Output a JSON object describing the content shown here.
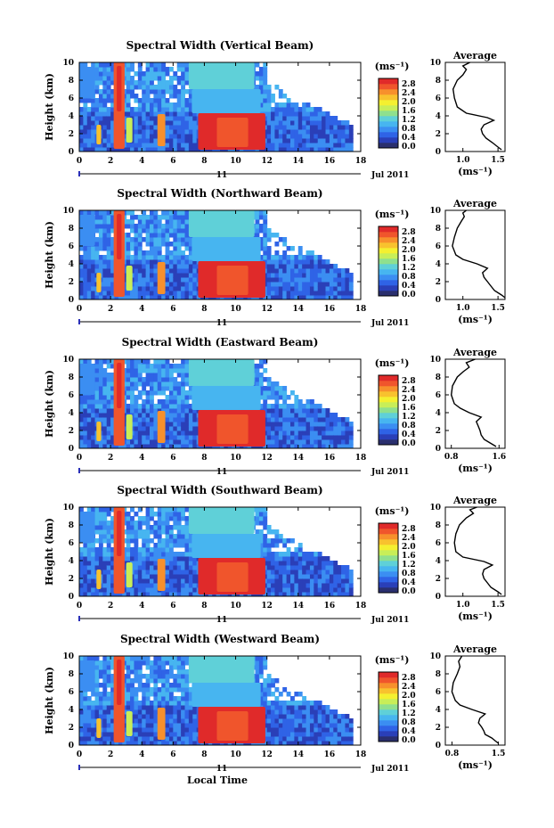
{
  "chart_data": [
    {
      "type": "heatmap",
      "title": "Spectral Width (Vertical Beam)",
      "ylabel": "Height (km)",
      "xlim": [
        0,
        18
      ],
      "ylim": [
        0,
        10
      ],
      "x_ticks": [
        "0",
        "2",
        "4",
        "6",
        "8",
        "10",
        "12",
        "14",
        "16",
        "18"
      ],
      "y_ticks": [
        "0",
        "2",
        "4",
        "6",
        "8",
        "10"
      ],
      "date_marker": "11",
      "date_label": "Jul 2011",
      "colorbar": {
        "unit": "(ms⁻¹)",
        "ticks": [
          "0.0",
          "0.4",
          "0.8",
          "1.2",
          "1.6",
          "2.0",
          "2.4",
          "2.8"
        ]
      },
      "average": {
        "title": "Average",
        "xlabel": "(ms⁻¹)",
        "x_ticks": [
          "1.0",
          "1.5"
        ],
        "xlim": [
          0.75,
          1.6
        ],
        "profile": [
          [
            1.55,
            0.2
          ],
          [
            1.5,
            0.5
          ],
          [
            1.42,
            1.0
          ],
          [
            1.33,
            1.5
          ],
          [
            1.28,
            2.0
          ],
          [
            1.26,
            2.5
          ],
          [
            1.3,
            3.0
          ],
          [
            1.44,
            3.5
          ],
          [
            1.35,
            3.8
          ],
          [
            1.05,
            4.3
          ],
          [
            0.92,
            5.0
          ],
          [
            0.88,
            6.0
          ],
          [
            0.86,
            7.0
          ],
          [
            0.92,
            8.0
          ],
          [
            1.0,
            8.6
          ],
          [
            1.05,
            9.2
          ],
          [
            1.0,
            9.6
          ],
          [
            1.1,
            10.0
          ]
        ]
      }
    },
    {
      "type": "heatmap",
      "title": "Spectral Width (Northward Beam)",
      "ylabel": "Height (km)",
      "xlim": [
        0,
        18
      ],
      "ylim": [
        0,
        10
      ],
      "x_ticks": [
        "0",
        "2",
        "4",
        "6",
        "8",
        "10",
        "12",
        "14",
        "16",
        "18"
      ],
      "y_ticks": [
        "0",
        "2",
        "4",
        "6",
        "8",
        "10"
      ],
      "date_marker": "11",
      "date_label": "Jul 2011",
      "colorbar": {
        "unit": "(ms⁻¹)",
        "ticks": [
          "0.0",
          "0.4",
          "0.8",
          "1.2",
          "1.6",
          "2.0",
          "2.4",
          "2.8"
        ]
      },
      "average": {
        "title": "Average",
        "xlabel": "(ms⁻¹)",
        "x_ticks": [
          "1.0",
          "1.5"
        ],
        "xlim": [
          0.75,
          1.6
        ],
        "profile": [
          [
            1.6,
            0.2
          ],
          [
            1.55,
            0.5
          ],
          [
            1.45,
            1.0
          ],
          [
            1.4,
            1.5
          ],
          [
            1.35,
            2.0
          ],
          [
            1.3,
            2.5
          ],
          [
            1.28,
            3.0
          ],
          [
            1.35,
            3.5
          ],
          [
            1.2,
            4.0
          ],
          [
            1.0,
            4.5
          ],
          [
            0.9,
            5.0
          ],
          [
            0.85,
            6.0
          ],
          [
            0.88,
            7.0
          ],
          [
            0.92,
            8.0
          ],
          [
            0.98,
            8.8
          ],
          [
            1.02,
            9.3
          ],
          [
            1.0,
            9.7
          ],
          [
            1.05,
            10.0
          ]
        ]
      }
    },
    {
      "type": "heatmap",
      "title": "Spectral Width (Eastward Beam)",
      "ylabel": "Height (km)",
      "xlim": [
        0,
        18
      ],
      "ylim": [
        0,
        10
      ],
      "x_ticks": [
        "0",
        "2",
        "4",
        "6",
        "8",
        "10",
        "12",
        "14",
        "16",
        "18"
      ],
      "y_ticks": [
        "0",
        "2",
        "4",
        "6",
        "8",
        "10"
      ],
      "date_marker": "11",
      "date_label": "Jul 2011",
      "colorbar": {
        "unit": "(ms⁻¹)",
        "ticks": [
          "0.0",
          "0.4",
          "0.8",
          "1.2",
          "1.6",
          "2.0",
          "2.4",
          "2.8"
        ]
      },
      "average": {
        "title": "Average",
        "xlabel": "(ms⁻¹)",
        "x_ticks": [
          "0.8",
          "1.6"
        ],
        "xlim": [
          0.7,
          1.7
        ],
        "profile": [
          [
            1.55,
            0.2
          ],
          [
            1.45,
            0.6
          ],
          [
            1.35,
            1.0
          ],
          [
            1.3,
            1.5
          ],
          [
            1.28,
            2.0
          ],
          [
            1.25,
            2.5
          ],
          [
            1.22,
            3.0
          ],
          [
            1.3,
            3.5
          ],
          [
            1.1,
            4.0
          ],
          [
            0.95,
            4.5
          ],
          [
            0.85,
            5.0
          ],
          [
            0.8,
            6.0
          ],
          [
            0.82,
            7.0
          ],
          [
            0.9,
            8.0
          ],
          [
            1.0,
            8.6
          ],
          [
            1.1,
            9.1
          ],
          [
            1.05,
            9.6
          ],
          [
            1.2,
            10.0
          ]
        ]
      }
    },
    {
      "type": "heatmap",
      "title": "Spectral Width (Southward Beam)",
      "ylabel": "Height (km)",
      "xlim": [
        0,
        18
      ],
      "ylim": [
        0,
        10
      ],
      "x_ticks": [
        "0",
        "2",
        "4",
        "6",
        "8",
        "10",
        "12",
        "14",
        "16",
        "18"
      ],
      "y_ticks": [
        "0",
        "2",
        "4",
        "6",
        "8",
        "10"
      ],
      "date_marker": "11",
      "date_label": "Jul 2011",
      "colorbar": {
        "unit": "(ms⁻¹)",
        "ticks": [
          "0.0",
          "0.4",
          "0.8",
          "1.2",
          "1.6",
          "2.0",
          "2.4",
          "2.8"
        ]
      },
      "average": {
        "title": "Average",
        "xlabel": "(ms⁻¹)",
        "x_ticks": [
          "1.0",
          "1.5"
        ],
        "xlim": [
          0.75,
          1.6
        ],
        "profile": [
          [
            1.55,
            0.2
          ],
          [
            1.5,
            0.5
          ],
          [
            1.4,
            1.0
          ],
          [
            1.35,
            1.5
          ],
          [
            1.3,
            2.0
          ],
          [
            1.28,
            2.5
          ],
          [
            1.3,
            3.0
          ],
          [
            1.42,
            3.5
          ],
          [
            1.3,
            3.9
          ],
          [
            1.0,
            4.4
          ],
          [
            0.9,
            5.0
          ],
          [
            0.88,
            6.0
          ],
          [
            0.9,
            7.0
          ],
          [
            0.95,
            8.0
          ],
          [
            1.05,
            8.8
          ],
          [
            1.15,
            9.3
          ],
          [
            1.1,
            9.7
          ],
          [
            1.2,
            10.0
          ]
        ]
      }
    },
    {
      "type": "heatmap",
      "title": "Spectral Width (Westward Beam)",
      "ylabel": "Height (km)",
      "xlim": [
        0,
        18
      ],
      "ylim": [
        0,
        10
      ],
      "x_ticks": [
        "0",
        "2",
        "4",
        "6",
        "8",
        "10",
        "12",
        "14",
        "16",
        "18"
      ],
      "y_ticks": [
        "0",
        "2",
        "4",
        "6",
        "8",
        "10"
      ],
      "date_marker": "11",
      "date_label": "Jul 2011",
      "colorbar": {
        "unit": "(ms⁻¹)",
        "ticks": [
          "0.0",
          "0.4",
          "0.8",
          "1.2",
          "1.6",
          "2.0",
          "2.4",
          "2.8"
        ]
      },
      "average": {
        "title": "Average",
        "xlabel": "(ms⁻¹)",
        "x_ticks": [
          "0.8",
          "1.5"
        ],
        "xlim": [
          0.7,
          1.6
        ],
        "profile": [
          [
            1.5,
            0.2
          ],
          [
            1.45,
            0.5
          ],
          [
            1.4,
            0.8
          ],
          [
            1.3,
            1.2
          ],
          [
            1.28,
            1.6
          ],
          [
            1.25,
            2.0
          ],
          [
            1.2,
            2.5
          ],
          [
            1.22,
            3.0
          ],
          [
            1.3,
            3.5
          ],
          [
            1.1,
            4.0
          ],
          [
            0.92,
            4.5
          ],
          [
            0.85,
            5.0
          ],
          [
            0.8,
            6.0
          ],
          [
            0.82,
            7.0
          ],
          [
            0.88,
            8.0
          ],
          [
            0.92,
            8.8
          ],
          [
            0.9,
            9.4
          ],
          [
            0.95,
            10.0
          ]
        ]
      }
    }
  ],
  "shared_xlabel": "Local Time",
  "colors": {
    "scale": [
      "#2a2f6e",
      "#2a3fb8",
      "#2f63e6",
      "#3b8ef2",
      "#47b5f0",
      "#5fd0d8",
      "#8fe08e",
      "#c8ee58",
      "#f4f030",
      "#f8c22e",
      "#f7902c",
      "#f0552c",
      "#e02a2a"
    ]
  }
}
